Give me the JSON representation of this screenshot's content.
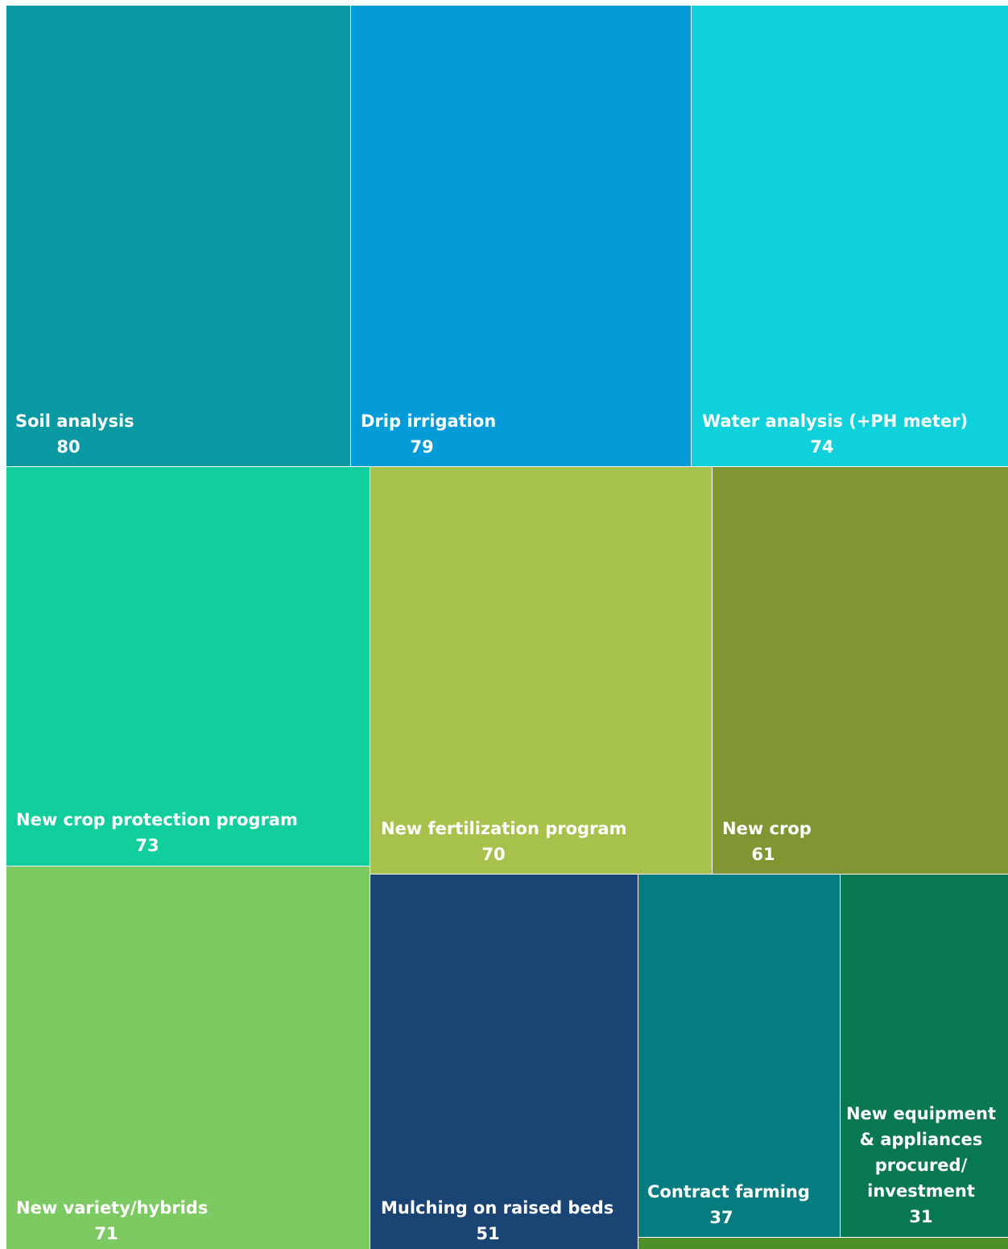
{
  "chart_data": {
    "type": "treemap",
    "title": "",
    "items": [
      {
        "label": "Soil analysis",
        "value": 80,
        "color": "#0899A3"
      },
      {
        "label": "Drip irrigation",
        "value": 79,
        "color": "#039CD9"
      },
      {
        "label": "Water analysis (+PH meter)",
        "value": 74,
        "color": "#0ED1DB"
      },
      {
        "label": "New crop protection program",
        "value": 73,
        "color": "#10CF9C"
      },
      {
        "label": "New fertilization program",
        "value": 70,
        "color": "#A7C24C"
      },
      {
        "label": "New crop",
        "value": 61,
        "color": "#809632"
      },
      {
        "label": "New variety/hybrids",
        "value": 71,
        "color": "#7ECA62"
      },
      {
        "label": "Mulching on raised beds",
        "value": 51,
        "color": "#1A4473"
      },
      {
        "label": "Contract farming",
        "value": 37,
        "color": "#067C80"
      },
      {
        "label": "New equipment & appliances procured/ investment",
        "label_lines": [
          "New equipment",
          "& appliances",
          "procured/",
          "investment"
        ],
        "value": 31,
        "color": "#087852"
      },
      {
        "label": "",
        "value": null,
        "color": "#4E8F2C"
      }
    ]
  }
}
